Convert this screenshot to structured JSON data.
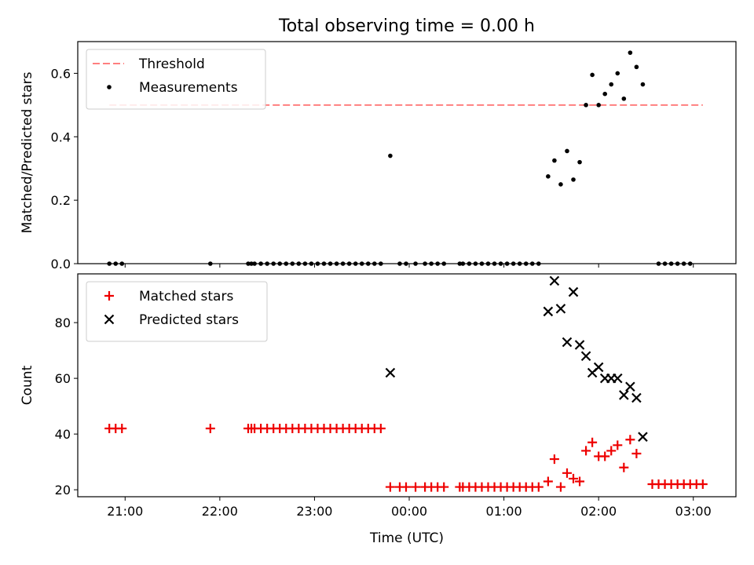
{
  "chart_data": [
    {
      "type": "scatter",
      "title": "Total observing time = 0.00 h",
      "ylabel": "Matched/Predicted stars",
      "xlabel": "",
      "xlim": [
        "20:30",
        "03:27"
      ],
      "ylim": [
        0,
        0.7
      ],
      "yticks": [
        0.0,
        0.2,
        0.4,
        0.6
      ],
      "ytick_labels": [
        "0.0",
        "0.2",
        "0.4",
        "0.6"
      ],
      "xticks": [
        "21:00",
        "22:00",
        "23:00",
        "00:00",
        "01:00",
        "02:00",
        "03:00"
      ],
      "legend_position": "upper-left",
      "threshold": {
        "name": "Threshold",
        "value": 0.5,
        "x": [
          "20:50",
          "03:06"
        ],
        "color": "#ff7f7f"
      },
      "series": [
        {
          "name": "Measurements",
          "marker": "dot",
          "color": "#000000",
          "points": [
            [
              "20:50",
              0
            ],
            [
              "20:54",
              0
            ],
            [
              "20:58",
              0
            ],
            [
              "21:54",
              0
            ],
            [
              "22:18",
              0
            ],
            [
              "22:20",
              0
            ],
            [
              "22:22",
              0
            ],
            [
              "22:26",
              0
            ],
            [
              "22:30",
              0
            ],
            [
              "22:34",
              0
            ],
            [
              "22:38",
              0
            ],
            [
              "22:42",
              0
            ],
            [
              "22:46",
              0
            ],
            [
              "22:50",
              0
            ],
            [
              "22:54",
              0
            ],
            [
              "22:58",
              0
            ],
            [
              "23:02",
              0
            ],
            [
              "23:06",
              0
            ],
            [
              "23:10",
              0
            ],
            [
              "23:14",
              0
            ],
            [
              "23:18",
              0
            ],
            [
              "23:22",
              0
            ],
            [
              "23:26",
              0
            ],
            [
              "23:30",
              0
            ],
            [
              "23:34",
              0
            ],
            [
              "23:38",
              0
            ],
            [
              "23:42",
              0
            ],
            [
              "23:48",
              0.34
            ],
            [
              "23:54",
              0
            ],
            [
              "23:58",
              0
            ],
            [
              "00:04",
              0
            ],
            [
              "00:10",
              0
            ],
            [
              "00:14",
              0
            ],
            [
              "00:18",
              0
            ],
            [
              "00:22",
              0
            ],
            [
              "00:32",
              0
            ],
            [
              "00:34",
              0
            ],
            [
              "00:38",
              0
            ],
            [
              "00:42",
              0
            ],
            [
              "00:46",
              0
            ],
            [
              "00:50",
              0
            ],
            [
              "00:54",
              0
            ],
            [
              "00:58",
              0
            ],
            [
              "01:02",
              0
            ],
            [
              "01:06",
              0
            ],
            [
              "01:10",
              0
            ],
            [
              "01:14",
              0
            ],
            [
              "01:18",
              0
            ],
            [
              "01:22",
              0
            ],
            [
              "01:28",
              0.275
            ],
            [
              "01:32",
              0.325
            ],
            [
              "01:36",
              0.25
            ],
            [
              "01:40",
              0.355
            ],
            [
              "01:44",
              0.265
            ],
            [
              "01:48",
              0.32
            ],
            [
              "01:52",
              0.5
            ],
            [
              "01:56",
              0.595
            ],
            [
              "02:00",
              0.5
            ],
            [
              "02:04",
              0.535
            ],
            [
              "02:08",
              0.565
            ],
            [
              "02:12",
              0.6
            ],
            [
              "02:16",
              0.52
            ],
            [
              "02:20",
              0.665
            ],
            [
              "02:24",
              0.62
            ],
            [
              "02:28",
              0.565
            ],
            [
              "02:38",
              0
            ],
            [
              "02:42",
              0
            ],
            [
              "02:46",
              0
            ],
            [
              "02:50",
              0
            ],
            [
              "02:54",
              0
            ],
            [
              "02:58",
              0
            ]
          ]
        }
      ]
    },
    {
      "type": "scatter",
      "title": "",
      "ylabel": "Count",
      "xlabel": "Time (UTC)",
      "xlim": [
        "20:30",
        "03:27"
      ],
      "ylim": [
        17.5,
        97.5
      ],
      "yticks": [
        20,
        40,
        60,
        80
      ],
      "ytick_labels": [
        "20",
        "40",
        "60",
        "80"
      ],
      "xticks": [
        "21:00",
        "22:00",
        "23:00",
        "00:00",
        "01:00",
        "02:00",
        "03:00"
      ],
      "legend_position": "upper-left",
      "series": [
        {
          "name": "Matched stars",
          "marker": "plus",
          "color": "#ee0000",
          "points": [
            [
              "20:50",
              42
            ],
            [
              "20:54",
              42
            ],
            [
              "20:58",
              42
            ],
            [
              "21:54",
              42
            ],
            [
              "22:18",
              42
            ],
            [
              "22:20",
              42
            ],
            [
              "22:22",
              42
            ],
            [
              "22:26",
              42
            ],
            [
              "22:30",
              42
            ],
            [
              "22:34",
              42
            ],
            [
              "22:38",
              42
            ],
            [
              "22:42",
              42
            ],
            [
              "22:46",
              42
            ],
            [
              "22:50",
              42
            ],
            [
              "22:54",
              42
            ],
            [
              "22:58",
              42
            ],
            [
              "23:02",
              42
            ],
            [
              "23:06",
              42
            ],
            [
              "23:10",
              42
            ],
            [
              "23:14",
              42
            ],
            [
              "23:18",
              42
            ],
            [
              "23:22",
              42
            ],
            [
              "23:26",
              42
            ],
            [
              "23:30",
              42
            ],
            [
              "23:34",
              42
            ],
            [
              "23:38",
              42
            ],
            [
              "23:42",
              42
            ],
            [
              "23:48",
              21
            ],
            [
              "23:54",
              21
            ],
            [
              "23:58",
              21
            ],
            [
              "00:04",
              21
            ],
            [
              "00:10",
              21
            ],
            [
              "00:14",
              21
            ],
            [
              "00:18",
              21
            ],
            [
              "00:22",
              21
            ],
            [
              "00:32",
              21
            ],
            [
              "00:34",
              21
            ],
            [
              "00:38",
              21
            ],
            [
              "00:42",
              21
            ],
            [
              "00:46",
              21
            ],
            [
              "00:50",
              21
            ],
            [
              "00:54",
              21
            ],
            [
              "00:58",
              21
            ],
            [
              "01:02",
              21
            ],
            [
              "01:06",
              21
            ],
            [
              "01:10",
              21
            ],
            [
              "01:14",
              21
            ],
            [
              "01:18",
              21
            ],
            [
              "01:22",
              21
            ],
            [
              "01:28",
              23
            ],
            [
              "01:32",
              31
            ],
            [
              "01:36",
              21
            ],
            [
              "01:40",
              26
            ],
            [
              "01:44",
              24
            ],
            [
              "01:48",
              23
            ],
            [
              "01:52",
              34
            ],
            [
              "01:56",
              37
            ],
            [
              "02:00",
              32
            ],
            [
              "02:04",
              32
            ],
            [
              "02:08",
              34
            ],
            [
              "02:12",
              36
            ],
            [
              "02:16",
              28
            ],
            [
              "02:20",
              38
            ],
            [
              "02:24",
              33
            ],
            [
              "02:34",
              22
            ],
            [
              "02:38",
              22
            ],
            [
              "02:42",
              22
            ],
            [
              "02:46",
              22
            ],
            [
              "02:50",
              22
            ],
            [
              "02:54",
              22
            ],
            [
              "02:58",
              22
            ],
            [
              "03:02",
              22
            ],
            [
              "03:06",
              22
            ]
          ]
        },
        {
          "name": "Predicted stars",
          "marker": "x",
          "color": "#000000",
          "points": [
            [
              "23:48",
              62
            ],
            [
              "01:28",
              84
            ],
            [
              "01:32",
              95
            ],
            [
              "01:36",
              85
            ],
            [
              "01:40",
              73
            ],
            [
              "01:44",
              91
            ],
            [
              "01:48",
              72
            ],
            [
              "01:52",
              68
            ],
            [
              "01:56",
              62
            ],
            [
              "02:00",
              64
            ],
            [
              "02:04",
              60
            ],
            [
              "02:08",
              60
            ],
            [
              "02:12",
              60
            ],
            [
              "02:16",
              54
            ],
            [
              "02:20",
              57
            ],
            [
              "02:24",
              53
            ],
            [
              "02:28",
              39
            ]
          ]
        }
      ]
    }
  ]
}
